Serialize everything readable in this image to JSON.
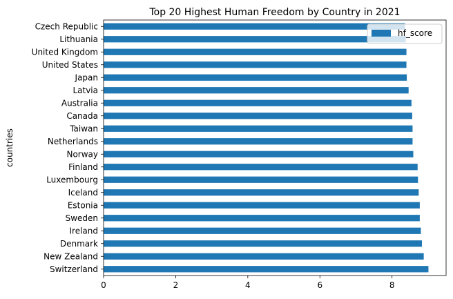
{
  "chart_data": {
    "type": "bar",
    "orientation": "horizontal",
    "title": "Top 20 Highest Human Freedom by Country in 2021",
    "xlabel": "",
    "ylabel": "countries",
    "xlim": [
      0,
      9.5
    ],
    "xticks": [
      0,
      2,
      4,
      6,
      8
    ],
    "grid": false,
    "legend_position": "top-right",
    "bar_color": "#1f77b4",
    "categories": [
      "Switzerland",
      "New Zealand",
      "Denmark",
      "Ireland",
      "Sweden",
      "Estonia",
      "Iceland",
      "Luxembourg",
      "Finland",
      "Norway",
      "Netherlands",
      "Taiwan",
      "Canada",
      "Australia",
      "Latvia",
      "Japan",
      "United States",
      "United Kingdom",
      "Lithuania",
      "Czech Republic"
    ],
    "series": [
      {
        "name": "hf_score",
        "values": [
          9.01,
          8.88,
          8.83,
          8.8,
          8.77,
          8.77,
          8.74,
          8.72,
          8.71,
          8.59,
          8.57,
          8.57,
          8.56,
          8.54,
          8.46,
          8.41,
          8.4,
          8.4,
          8.38,
          8.36
        ]
      }
    ]
  }
}
